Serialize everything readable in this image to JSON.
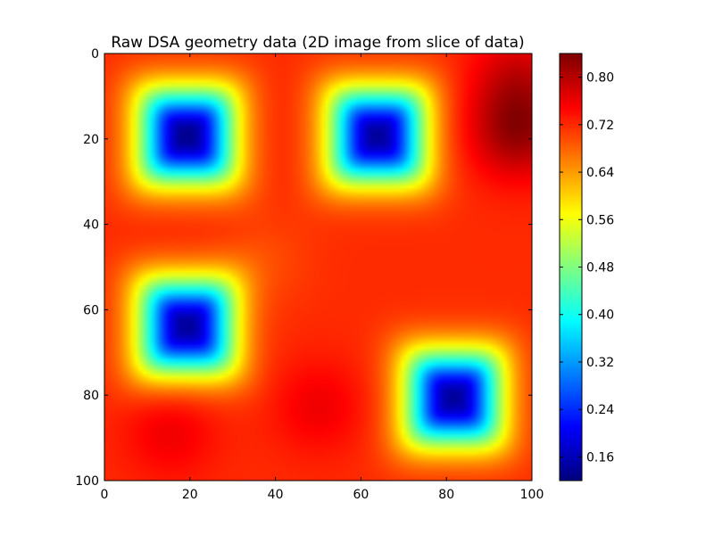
{
  "chart_data": {
    "type": "heatmap",
    "title": "Raw DSA geometry data (2D image from slice of data)",
    "xlabel": "",
    "ylabel": "",
    "xlim": [
      0,
      100
    ],
    "ylim": [
      100,
      0
    ],
    "x_ticks": [
      "0",
      "20",
      "40",
      "60",
      "80",
      "100"
    ],
    "y_ticks": [
      "0",
      "20",
      "40",
      "60",
      "80",
      "100"
    ],
    "colormap": "jet",
    "colorbar": {
      "range": [
        0.12,
        0.84
      ],
      "ticks": [
        "0.16",
        "0.24",
        "0.32",
        "0.40",
        "0.48",
        "0.56",
        "0.64",
        "0.72",
        "0.80"
      ]
    },
    "background_level": 0.72,
    "wells": [
      {
        "x": 19,
        "y": 19,
        "min_value": 0.13
      },
      {
        "x": 64,
        "y": 19,
        "min_value": 0.14
      },
      {
        "x": 19,
        "y": 64,
        "min_value": 0.14
      },
      {
        "x": 82,
        "y": 81,
        "min_value": 0.14
      }
    ],
    "peaks": [
      {
        "x": 97,
        "y": 18,
        "value": 0.82
      },
      {
        "x": 97,
        "y": 5,
        "value": 0.78
      },
      {
        "x": 50,
        "y": 83,
        "value": 0.76
      },
      {
        "x": 15,
        "y": 89,
        "value": 0.76
      },
      {
        "x": 38,
        "y": 48,
        "value": 0.7
      }
    ]
  }
}
